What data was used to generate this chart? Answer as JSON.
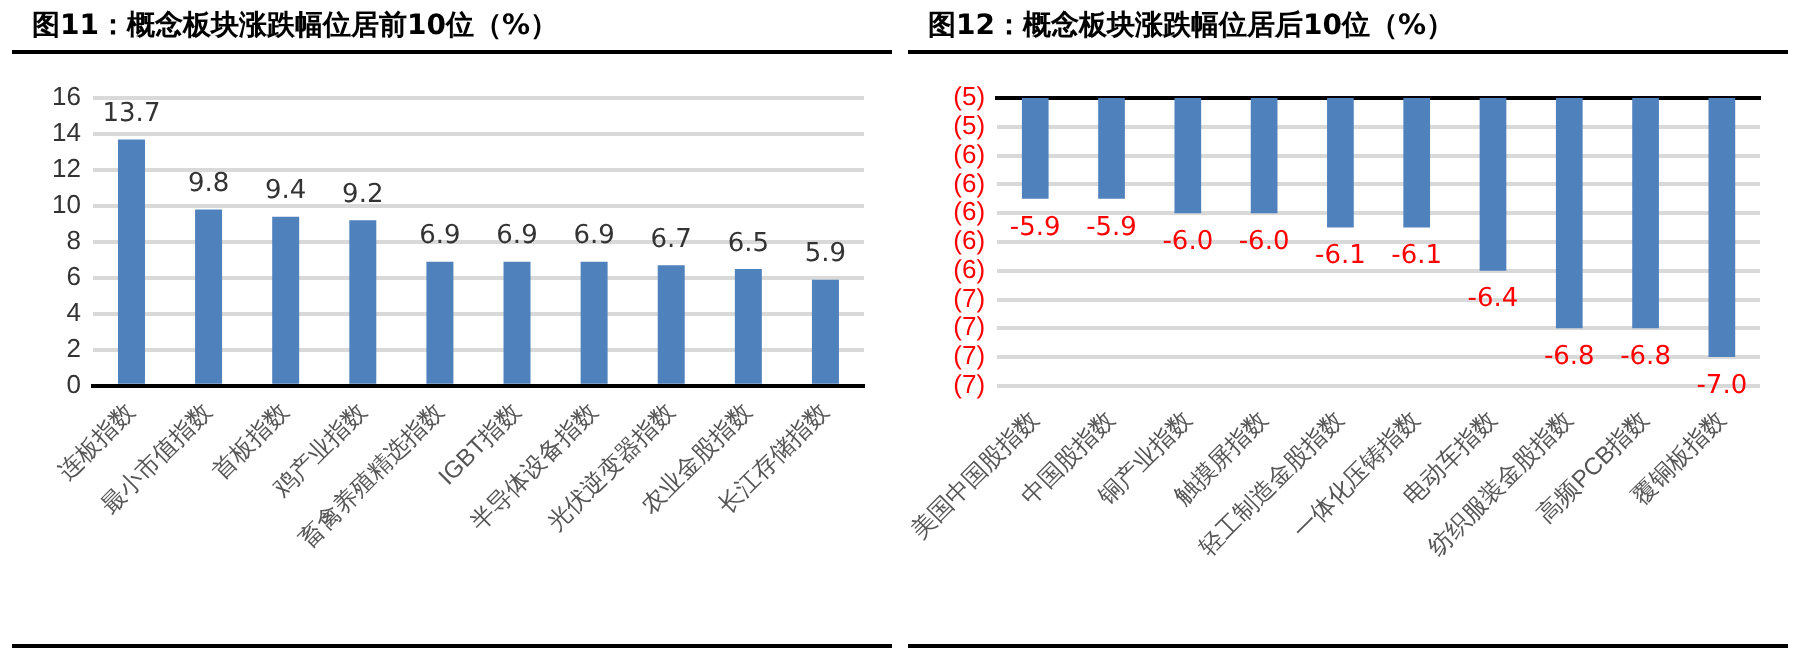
{
  "chart_data": [
    {
      "type": "bar",
      "title": "图11：概念板块涨跌幅位居前10位（%）",
      "categories": [
        "连板指数",
        "最小市值指数",
        "首板指数",
        "鸡产业指数",
        "畜禽养殖精选指数",
        "IGBT指数",
        "半导体设备指数",
        "光伏逆变器指数",
        "农业金股指数",
        "长江存储指数"
      ],
      "values": [
        13.7,
        9.8,
        9.4,
        9.2,
        6.9,
        6.9,
        6.9,
        6.7,
        6.5,
        5.9
      ],
      "color": "#4f81bd",
      "ylim": [
        0,
        16
      ],
      "yticks": [
        0,
        2,
        4,
        6,
        8,
        10,
        12,
        14,
        16
      ],
      "grid": "y",
      "legend": false,
      "data_labels": true
    },
    {
      "type": "bar",
      "title": "图12：概念板块涨跌幅位居后10位（%）",
      "categories": [
        "美国中国股指数",
        "中国股指数",
        "铜产业指数",
        "触摸屏指数",
        "轻工制造金股指数",
        "一体化压铸指数",
        "电动车指数",
        "纺织服装金股指数",
        "高频PCB指数",
        "覆铜板指数"
      ],
      "values": [
        -5.9,
        -5.9,
        -6.0,
        -6.0,
        -6.1,
        -6.1,
        -6.4,
        -6.8,
        -6.8,
        -7.0
      ],
      "color": "#4f81bd",
      "ylim": [
        -7.2,
        -5.2
      ],
      "yticks": [
        {
          "value": -5.2,
          "label": "(5)"
        },
        {
          "value": -5.4,
          "label": "(5)"
        },
        {
          "value": -5.6,
          "label": "(6)"
        },
        {
          "value": -5.8,
          "label": "(6)"
        },
        {
          "value": -6.0,
          "label": "(6)"
        },
        {
          "value": -6.2,
          "label": "(6)"
        },
        {
          "value": -6.4,
          "label": "(6)"
        },
        {
          "value": -6.6,
          "label": "(7)"
        },
        {
          "value": -6.8,
          "label": "(7)"
        },
        {
          "value": -7.0,
          "label": "(7)"
        },
        {
          "value": -7.2,
          "label": "(7)"
        }
      ],
      "grid": "y",
      "legend": false,
      "value_labels": [
        "-5.9",
        "-5.9",
        "-6.0",
        "-6.0",
        "-6.1",
        "-6.1",
        "-6.4",
        "-6.8",
        "-6.8",
        "-7.0"
      ]
    }
  ]
}
